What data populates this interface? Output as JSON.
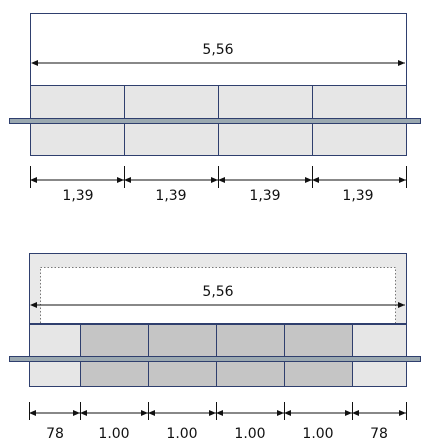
{
  "colors": {
    "outline": "#2f3f6e",
    "light_fill": "#e6e6e6",
    "dark_fill": "#c5c5c5",
    "rail": "#9aa8b0",
    "dim_line": "#111111",
    "dotted": "#777777"
  },
  "top_figure": {
    "overall_width": "5,56",
    "segments": [
      "1,39",
      "1,39",
      "1,39",
      "1,39"
    ]
  },
  "bottom_figure": {
    "overall_width": "5,56",
    "segments": [
      "78",
      "1.00",
      "1.00",
      "1.00",
      "1.00",
      "78"
    ]
  }
}
